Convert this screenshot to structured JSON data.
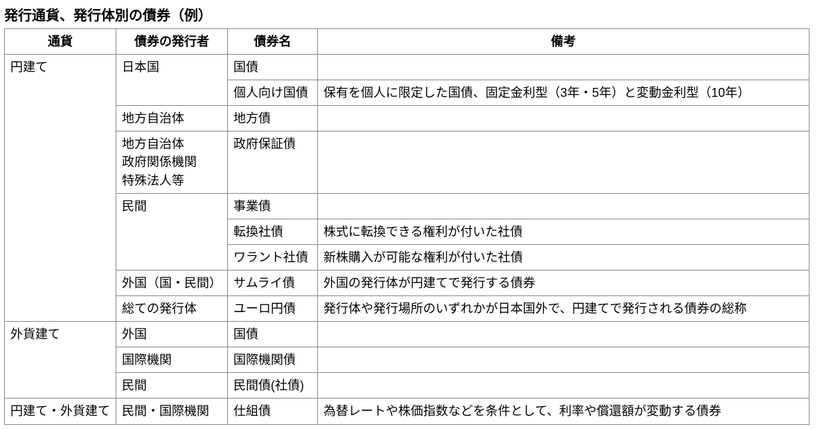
{
  "title": "発行通貨、発行体別の債券（例）",
  "headers": {
    "currency": "通貨",
    "issuer": "債券の発行者",
    "name": "債券名",
    "remark": "備考"
  },
  "rows": [
    {
      "currency": "円建て",
      "issuer": "日本国",
      "name": "国債",
      "remark": ""
    },
    {
      "currency": "",
      "issuer": "",
      "name": "個人向け国債",
      "remark": "保有を個人に限定した国債、固定金利型（3年・5年）と変動金利型（10年）"
    },
    {
      "currency": "",
      "issuer": "地方自治体",
      "name": "地方債",
      "remark": ""
    },
    {
      "currency": "",
      "issuer": "地方自治体\n政府関係機関\n特殊法人等",
      "name": "政府保証債",
      "remark": ""
    },
    {
      "currency": "",
      "issuer": "民間",
      "name": "事業債",
      "remark": ""
    },
    {
      "currency": "",
      "issuer": "",
      "name": "転換社債",
      "remark": "株式に転換できる権利が付いた社債"
    },
    {
      "currency": "",
      "issuer": "",
      "name": "ワラント社債",
      "remark": "新株購入が可能な権利が付いた社債"
    },
    {
      "currency": "",
      "issuer": "外国（国・民間）",
      "name": "サムライ債",
      "remark": "外国の発行体が円建てで発行する債券"
    },
    {
      "currency": "",
      "issuer": "総ての発行体",
      "name": "ユーロ円債",
      "remark": "発行体や発行場所のいずれかが日本国外で、円建てで発行される債券の総称"
    },
    {
      "currency": "外貨建て",
      "issuer": "外国",
      "name": "国債",
      "remark": ""
    },
    {
      "currency": "",
      "issuer": "国際機関",
      "name": "国際機関債",
      "remark": ""
    },
    {
      "currency": "",
      "issuer": "民間",
      "name": "民間債(社債)",
      "remark": ""
    },
    {
      "currency": "円建て・外貨建て",
      "issuer": "民間・国際機関",
      "name": "仕組債",
      "remark": "為替レートや株価指数などを条件として、利率や償還額が変動する債券"
    }
  ],
  "rowspans": {
    "currency": [
      9,
      0,
      0,
      0,
      0,
      0,
      0,
      0,
      0,
      3,
      0,
      0,
      1
    ],
    "issuer": [
      2,
      0,
      1,
      1,
      3,
      0,
      0,
      1,
      1,
      1,
      1,
      1,
      1
    ]
  },
  "colors": {
    "border": "#888888",
    "text": "#000000",
    "background": "#ffffff"
  },
  "font_sizes": {
    "title": 20,
    "body": 18
  }
}
